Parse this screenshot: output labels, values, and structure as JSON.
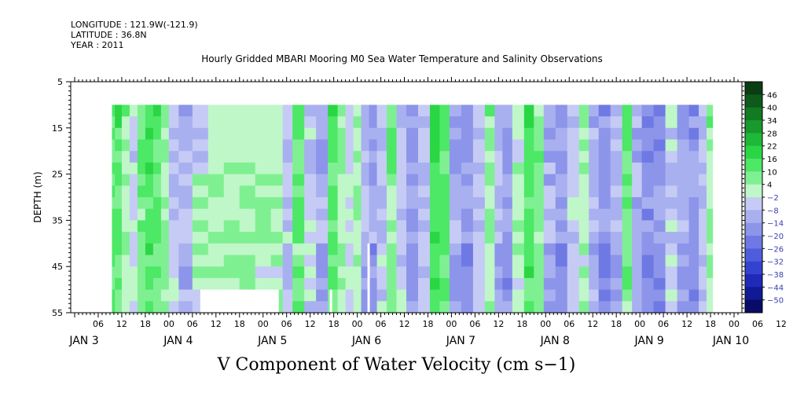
{
  "header": {
    "longitude": "LONGITUDE : 121.9W(-121.9)",
    "latitude": "LATITUDE : 36.8N",
    "year": "YEAR : 2011"
  },
  "chart_data": {
    "type": "heatmap",
    "title": "Hourly Gridded MBARI Mooring M0 Sea Water Temperature and Salinity Observations",
    "bottom_title": "V Component of Water Velocity (cm s−1)",
    "ylabel": "DEPTH (m)",
    "y_axis": {
      "ylim": [
        5,
        55
      ],
      "inverted": true,
      "ticks": [
        "5",
        "15",
        "25",
        "35",
        "45",
        "55"
      ]
    },
    "x_axis": {
      "hour_tick_labels": [
        "06",
        "12",
        "18",
        "00",
        "06",
        "12",
        "18",
        "00",
        "06",
        "12",
        "18",
        "00",
        "06",
        "12",
        "18",
        "00",
        "06",
        "12",
        "18",
        "00",
        "06",
        "12",
        "18",
        "00",
        "06",
        "12",
        "18",
        "00",
        "06",
        "12",
        "18",
        "00"
      ],
      "date_labels": [
        "JAN  3",
        "JAN  4",
        "JAN  5",
        "JAN  6",
        "JAN  7",
        "JAN  8",
        "JAN  9",
        "JAN 10"
      ]
    },
    "colorbar": {
      "levels": [
        "46",
        "40",
        "34",
        "28",
        "22",
        "16",
        "10",
        "4",
        "−2",
        "−8",
        "−14",
        "−20",
        "−26",
        "−32",
        "−38",
        "−44",
        "−50"
      ],
      "colors": [
        "#0a3d12",
        "#0d5a1a",
        "#117a22",
        "#17992c",
        "#1fb838",
        "#2bd645",
        "#4ce866",
        "#7ff092",
        "#bff7c8",
        "#c6cbf5",
        "#a9b0ef",
        "#8c95ea",
        "#6e79e4",
        "#4f5ddc",
        "#3443cf",
        "#1f2ab8",
        "#101a94",
        "#080c66"
      ],
      "color_for_negative_label": "#3b40b0"
    },
    "data_extent": {
      "x_start": "JAN 3 10:00",
      "x_end": "JAN 10 00:00",
      "depth_top": 10,
      "depth_bottom": 55
    },
    "columns": [
      {
        "t": 9.5,
        "v": 12
      },
      {
        "t": 11,
        "v": 14
      },
      {
        "t": 13,
        "v": 6
      },
      {
        "t": 15,
        "v": -4
      },
      {
        "t": 17,
        "v": 10
      },
      {
        "t": 19,
        "v": 16
      },
      {
        "t": 21,
        "v": 14
      },
      {
        "t": 23,
        "v": 6
      },
      {
        "t": 25,
        "v": -8
      },
      {
        "t": 28,
        "v": -10
      },
      {
        "t": 32,
        "v": -6
      },
      {
        "t": 36,
        "v": -2
      },
      {
        "t": 40,
        "v": 2
      },
      {
        "t": 44,
        "v": 4
      },
      {
        "t": 48,
        "v": -4
      },
      {
        "t": 52,
        "v": 6
      },
      {
        "t": 54,
        "v": -8
      },
      {
        "t": 57,
        "v": 10
      },
      {
        "t": 60,
        "v": -6
      },
      {
        "t": 63,
        "v": -12
      },
      {
        "t": 66,
        "v": 14
      },
      {
        "t": 68,
        "v": 6
      },
      {
        "t": 70,
        "v": -4
      },
      {
        "t": 72,
        "v": 4
      },
      {
        "t": 74,
        "v": -10
      },
      {
        "t": 76,
        "v": -16
      },
      {
        "t": 78,
        "v": -8
      },
      {
        "t": 81,
        "v": 8
      },
      {
        "t": 83,
        "v": -6
      },
      {
        "t": 86,
        "v": -14
      },
      {
        "t": 89,
        "v": -8
      },
      {
        "t": 92,
        "v": 18
      },
      {
        "t": 94,
        "v": 14
      },
      {
        "t": 97,
        "v": -14
      },
      {
        "t": 100,
        "v": -18
      },
      {
        "t": 103,
        "v": -8
      },
      {
        "t": 106,
        "v": 6
      },
      {
        "t": 108,
        "v": -10
      },
      {
        "t": 110,
        "v": -16
      },
      {
        "t": 113,
        "v": 2
      },
      {
        "t": 116,
        "v": 16
      },
      {
        "t": 118,
        "v": 8
      },
      {
        "t": 121,
        "v": -12
      },
      {
        "t": 124,
        "v": -16
      },
      {
        "t": 127,
        "v": -6
      },
      {
        "t": 130,
        "v": 4
      },
      {
        "t": 132,
        "v": -10
      },
      {
        "t": 135,
        "v": -18
      },
      {
        "t": 138,
        "v": -10
      },
      {
        "t": 141,
        "v": 12
      },
      {
        "t": 143,
        "v": -12
      },
      {
        "t": 146,
        "v": -20
      },
      {
        "t": 149,
        "v": -18
      },
      {
        "t": 152,
        "v": -6
      },
      {
        "t": 155,
        "v": -14
      },
      {
        "t": 158,
        "v": -18
      },
      {
        "t": 160,
        "v": -8
      },
      {
        "t": 162,
        "v": 6
      }
    ],
    "missing_blocks": [
      {
        "t0": 32,
        "t1": 52,
        "d0": 50,
        "d1": 55
      },
      {
        "t0": 65,
        "t1": 65.6,
        "d0": 50,
        "d1": 55
      },
      {
        "t0": 74.6,
        "t1": 75.2,
        "d0": 40,
        "d1": 55
      }
    ],
    "region_overrides": [
      {
        "t0": 32,
        "t1": 52,
        "d0": 25,
        "d1": 50,
        "v": 4
      },
      {
        "t0": 36,
        "t1": 52,
        "d0": 10,
        "d1": 22,
        "v": 2
      },
      {
        "t0": 46,
        "t1": 52,
        "d0": 45,
        "d1": 50,
        "v": -2
      }
    ]
  }
}
